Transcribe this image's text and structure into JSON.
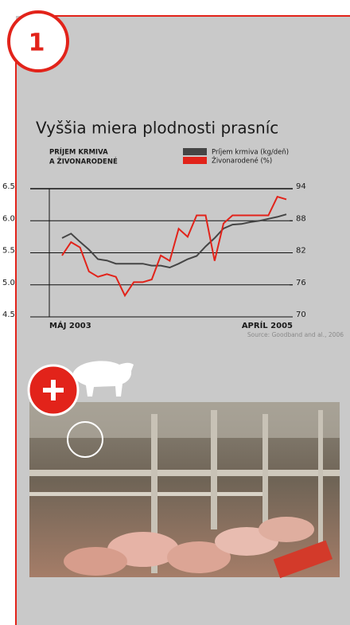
{
  "badge": "1",
  "chart_data": {
    "type": "line",
    "title": "Vyššia miera plodnosti prasníc",
    "y_label": [
      "PRÍJEM KRMIVA",
      "A ŽIVONARODENÉ"
    ],
    "source": "Source: Goodband and al., 2006",
    "categories": [
      "MÁJ 2003",
      null,
      null,
      null,
      null,
      null,
      null,
      null,
      null,
      null,
      null,
      null,
      null,
      null,
      null,
      null,
      null,
      null,
      null,
      null,
      null,
      null,
      null,
      null,
      null,
      "APRÍL 2005"
    ],
    "series": [
      {
        "name": "Príjem krmiva (kg/deň)",
        "color": "#454545",
        "axis": "y",
        "values": [
          5.73,
          5.8,
          5.67,
          5.55,
          5.4,
          5.38,
          5.33,
          5.33,
          5.33,
          5.33,
          5.3,
          5.3,
          5.27,
          5.33,
          5.4,
          5.45,
          5.6,
          5.73,
          5.88,
          5.94,
          5.95,
          5.98,
          6.0,
          6.03,
          6.06,
          6.1
        ]
      },
      {
        "name": "Živonarodené  (%)",
        "color": "#e2231a",
        "axis": "y2",
        "values": [
          81.5,
          84,
          83,
          78.5,
          77.5,
          78,
          77.5,
          74,
          76.5,
          76.5,
          77,
          81.5,
          80.5,
          86.5,
          85,
          89,
          89,
          80.5,
          87.5,
          89,
          89,
          89,
          89,
          89,
          92.5,
          92
        ]
      }
    ],
    "ylim": [
      4.5,
      6.5
    ],
    "yticks": [
      4.5,
      {
        "value": 5,
        "label": "5.0"
      },
      5.5,
      {
        "value": 6,
        "label": "6.0"
      },
      6.5
    ],
    "y2lim": [
      70,
      94
    ],
    "y2ticks": [
      70,
      76,
      82,
      88,
      94
    ],
    "grid": true
  }
}
